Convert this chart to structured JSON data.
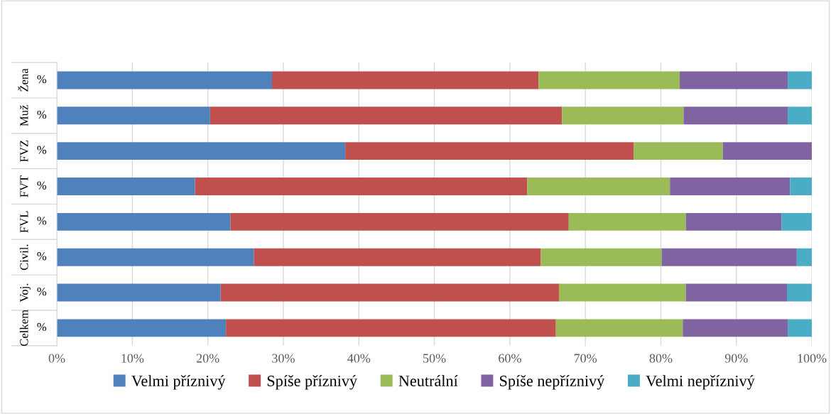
{
  "chart_data": {
    "type": "bar",
    "orientation": "horizontal",
    "stacked": true,
    "categories": [
      "Žena",
      "Muž",
      "FVZ",
      "FVT",
      "FVL",
      "Civil.",
      "Voj.",
      "Celkem"
    ],
    "annotations": [
      "%",
      "%",
      "%",
      "%",
      "%",
      "%",
      "%",
      "%"
    ],
    "series": [
      {
        "name": "Velmi příznivý",
        "color": "#4f81bd",
        "values": [
          28.5,
          20.3,
          38.2,
          18.3,
          23.0,
          26.1,
          21.7,
          22.4
        ]
      },
      {
        "name": "Spíše příznivý",
        "color": "#c0504d",
        "values": [
          35.3,
          46.6,
          38.2,
          44.0,
          44.8,
          38.0,
          44.8,
          43.7
        ]
      },
      {
        "name": "Neutrální",
        "color": "#9bbb59",
        "values": [
          18.7,
          16.1,
          11.8,
          18.9,
          15.5,
          16.0,
          16.8,
          16.8
        ]
      },
      {
        "name": "Spíše nepříznivý",
        "color": "#8064a2",
        "values": [
          14.3,
          13.8,
          11.8,
          15.9,
          12.7,
          17.9,
          13.4,
          13.9
        ]
      },
      {
        "name": "Velmi nepříznivý",
        "color": "#4bacc6",
        "values": [
          3.2,
          3.2,
          0,
          2.9,
          4.0,
          2.0,
          3.3,
          3.2
        ]
      }
    ],
    "xlim": [
      0,
      100
    ],
    "xticks": [
      {
        "value": 0,
        "label": "0%"
      },
      {
        "value": 10,
        "label": "10%"
      },
      {
        "value": 20,
        "label": "20%"
      },
      {
        "value": 30,
        "label": "30%"
      },
      {
        "value": 40,
        "label": "40%"
      },
      {
        "value": 50,
        "label": "50%"
      },
      {
        "value": 60,
        "label": "60%"
      },
      {
        "value": 70,
        "label": "70%"
      },
      {
        "value": 80,
        "label": "80%"
      },
      {
        "value": 90,
        "label": "90%"
      },
      {
        "value": 100,
        "label": "100%"
      }
    ],
    "grid": "x",
    "legend": "bottom"
  }
}
